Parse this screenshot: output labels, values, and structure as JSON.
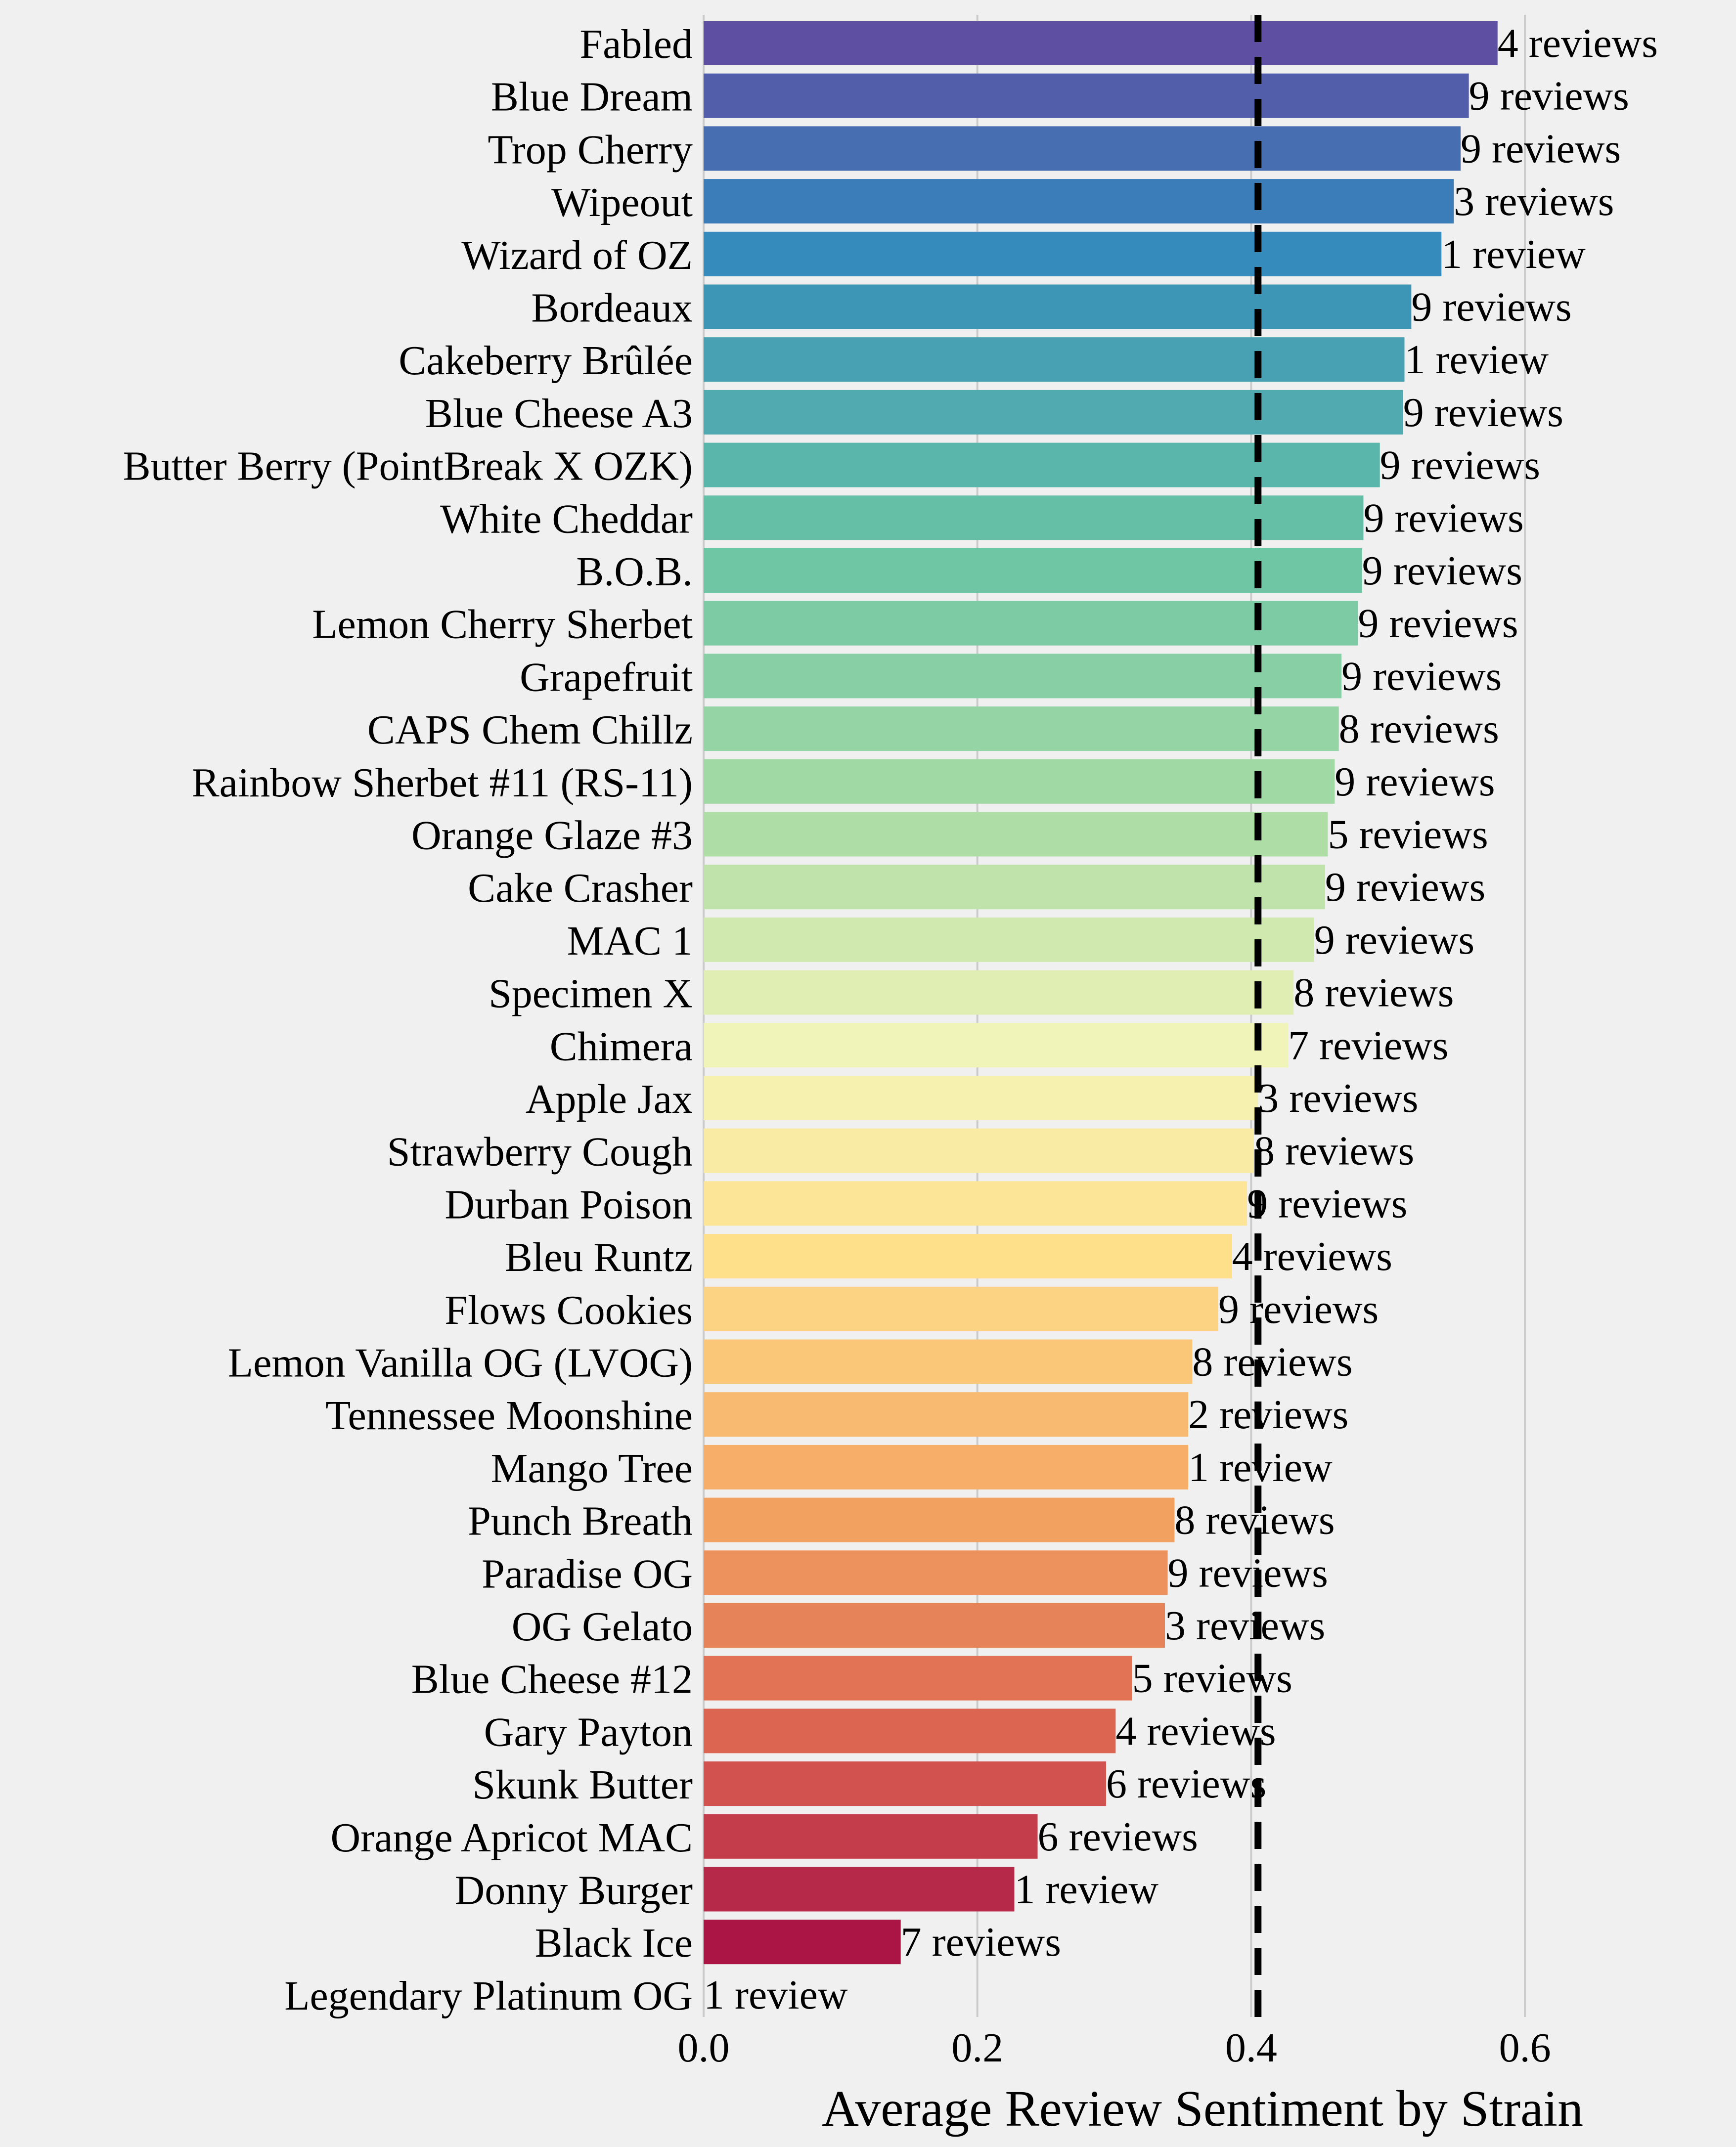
{
  "chart_data": {
    "type": "bar",
    "orientation": "horizontal",
    "title": "",
    "xlabel": "Average Review Sentiment by Strain",
    "ylabel": "",
    "xlim": [
      0,
      0.7
    ],
    "xticks": [
      0.0,
      0.2,
      0.4,
      0.6
    ],
    "xtick_labels": [
      "0.0",
      "0.2",
      "0.4",
      "0.6"
    ],
    "grid": "vertical",
    "reference_line": {
      "value": 0.405,
      "style": "dashed",
      "color": "#000000"
    },
    "categories": [
      "Fabled",
      "Blue Dream",
      "Trop Cherry",
      "Wipeout",
      "Wizard of OZ",
      "Bordeaux",
      "Cakeberry Brûlée",
      "Blue Cheese A3",
      "Butter Berry (PointBreak X OZK)",
      "White Cheddar",
      "B.O.B.",
      "Lemon Cherry Sherbet",
      "Grapefruit",
      "CAPS Chem Chillz",
      "Rainbow Sherbet #11 (RS-11)",
      "Orange Glaze #3",
      "Cake Crasher",
      "MAC 1",
      "Specimen X",
      "Chimera",
      "Apple Jax",
      "Strawberry Cough",
      "Durban Poison",
      "Bleu Runtz",
      "Flows Cookies",
      "Lemon Vanilla OG (LVOG)",
      "Tennessee Moonshine",
      "Mango Tree",
      "Punch Breath",
      "Paradise OG",
      "OG Gelato",
      "Blue Cheese #12",
      "Gary Payton",
      "Skunk Butter",
      "Orange Apricot MAC",
      "Donny Burger",
      "Black Ice",
      "Legendary Platinum OG"
    ],
    "values": [
      0.58,
      0.559,
      0.553,
      0.548,
      0.539,
      0.517,
      0.512,
      0.511,
      0.494,
      0.482,
      0.481,
      0.478,
      0.466,
      0.464,
      0.461,
      0.456,
      0.454,
      0.446,
      0.431,
      0.427,
      0.405,
      0.402,
      0.397,
      0.386,
      0.376,
      0.357,
      0.354,
      0.354,
      0.344,
      0.339,
      0.337,
      0.313,
      0.301,
      0.294,
      0.244,
      0.227,
      0.144,
      0.0
    ],
    "bar_labels": [
      "4 reviews",
      "9 reviews",
      "9 reviews",
      "3 reviews",
      "1 review",
      "9 reviews",
      "1 review",
      "9 reviews",
      "9 reviews",
      "9 reviews",
      "9 reviews",
      "9 reviews",
      "9 reviews",
      "8 reviews",
      "9 reviews",
      "5 reviews",
      "9 reviews",
      "9 reviews",
      "8 reviews",
      "7 reviews",
      "3 reviews",
      "8 reviews",
      "9 reviews",
      "4 reviews",
      "9 reviews",
      "8 reviews",
      "2 reviews",
      "1 review",
      "8 reviews",
      "9 reviews",
      "3 reviews",
      "5 reviews",
      "4 reviews",
      "6 reviews",
      "6 reviews",
      "1 review",
      "7 reviews",
      "1 review"
    ],
    "palette": "Spectral_r"
  }
}
